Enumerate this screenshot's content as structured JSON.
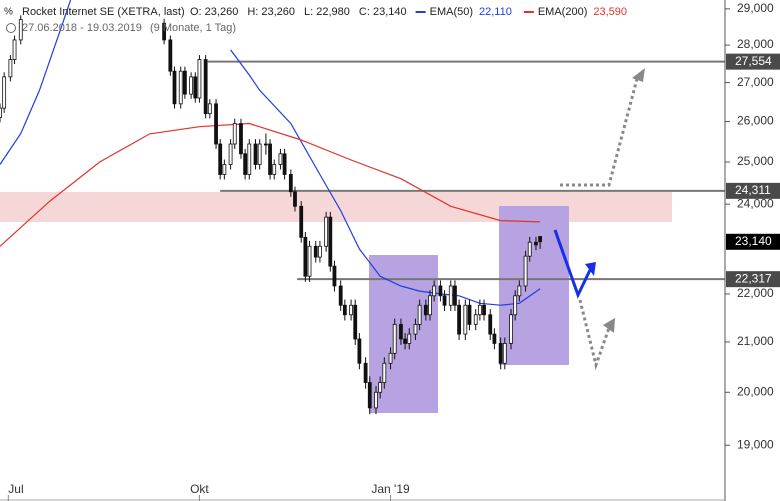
{
  "chart_data": {
    "type": "candlestick",
    "info": {
      "instrument": "Rocket Internet SE (XETRA, last)",
      "ohlc_labels": [
        "O: 23,260",
        "H: 23,260",
        "L: 22,980",
        "C: 23,140"
      ],
      "range": "27.06.2018 - 19.03.2019",
      "duration": "(9 Monate, 1 Tag)"
    },
    "log_scale": true,
    "ylim": [
      18000,
      29250
    ],
    "xlim": [
      0,
      349
    ],
    "yticks": [
      {
        "value": 29000,
        "label": "29,000"
      },
      {
        "value": 28000,
        "label": "28,000"
      },
      {
        "value": 27000,
        "label": "27,000"
      },
      {
        "value": 26000,
        "label": "26,000"
      },
      {
        "value": 25000,
        "label": "25,000"
      },
      {
        "value": 24000,
        "label": "24,000"
      },
      {
        "value": 22000,
        "label": "22,000"
      },
      {
        "value": 21000,
        "label": "21,000"
      },
      {
        "value": 20000,
        "label": "20,000"
      },
      {
        "value": 19000,
        "label": "19,000"
      }
    ],
    "xticks": [
      {
        "value": 4,
        "label": "Jul"
      },
      {
        "value": 96,
        "label": "Okt"
      },
      {
        "value": 188,
        "label": "Jan '19"
      }
    ],
    "x": [
      0,
      2,
      5,
      7,
      10,
      79,
      82,
      84,
      87,
      89,
      92,
      94,
      96,
      99,
      101,
      104,
      106,
      108,
      111,
      113,
      116,
      118,
      120,
      123,
      125,
      128,
      130,
      132,
      135,
      137,
      140,
      142,
      145,
      147,
      149,
      152,
      154,
      157,
      159,
      161,
      164,
      166,
      169,
      171,
      173,
      176,
      178,
      181,
      183,
      185,
      188,
      190,
      193,
      195,
      197,
      200,
      202,
      205,
      207,
      209,
      212,
      214,
      217,
      219,
      221,
      224,
      226,
      229,
      231,
      233,
      236,
      238,
      241,
      243,
      246,
      248,
      250,
      253,
      255,
      258,
      260
    ],
    "ohlc": [
      [
        26100,
        26460,
        25980,
        26340
      ],
      [
        26340,
        27270,
        26220,
        27150
      ],
      [
        27150,
        27730,
        27030,
        27610
      ],
      [
        27610,
        28260,
        27490,
        28140
      ],
      [
        28140,
        28820,
        28020,
        28700
      ],
      [
        28600,
        28720,
        28020,
        28140
      ],
      [
        28140,
        28260,
        27180,
        27300
      ],
      [
        27300,
        27420,
        26330,
        26450
      ],
      [
        26450,
        27420,
        26330,
        27300
      ],
      [
        27300,
        27420,
        26580,
        26700
      ],
      [
        26700,
        27270,
        26580,
        27150
      ],
      [
        27150,
        27270,
        26480,
        26600
      ],
      [
        26600,
        27730,
        26480,
        27610
      ],
      [
        27610,
        27730,
        26080,
        26200
      ],
      [
        26200,
        26570,
        26080,
        26450
      ],
      [
        26450,
        26570,
        25320,
        25440
      ],
      [
        25440,
        25560,
        24580,
        24700
      ],
      [
        24700,
        25060,
        24580,
        24940
      ],
      [
        24940,
        25560,
        24820,
        25440
      ],
      [
        25440,
        26070,
        25320,
        25950
      ],
      [
        25950,
        26070,
        25080,
        25200
      ],
      [
        25200,
        25320,
        24580,
        24700
      ],
      [
        24700,
        25560,
        24580,
        25440
      ],
      [
        25440,
        25560,
        24820,
        24940
      ],
      [
        24940,
        25560,
        24820,
        25440
      ],
      [
        25440,
        25700,
        25180,
        25440
      ],
      [
        25440,
        25560,
        24580,
        24700
      ],
      [
        24700,
        25060,
        24580,
        24940
      ],
      [
        24940,
        25320,
        24820,
        25200
      ],
      [
        25200,
        25320,
        24580,
        24700
      ],
      [
        24700,
        24820,
        24170,
        24290
      ],
      [
        24290,
        24410,
        23830,
        23950
      ],
      [
        23950,
        24070,
        23120,
        23240
      ],
      [
        23240,
        23360,
        22260,
        22380
      ],
      [
        22380,
        23160,
        22260,
        23040
      ],
      [
        23040,
        23160,
        22680,
        22800
      ],
      [
        22800,
        23160,
        22680,
        23040
      ],
      [
        23040,
        23820,
        22920,
        23700
      ],
      [
        23700,
        23820,
        22480,
        22600
      ],
      [
        22600,
        22720,
        22050,
        22170
      ],
      [
        22170,
        22290,
        21640,
        21760
      ],
      [
        21760,
        21880,
        21440,
        21560
      ],
      [
        21560,
        21880,
        21440,
        21760
      ],
      [
        21760,
        21880,
        20940,
        21060
      ],
      [
        21060,
        21180,
        20450,
        20570
      ],
      [
        20570,
        20690,
        20070,
        20190
      ],
      [
        20190,
        20310,
        19580,
        19700
      ],
      [
        19700,
        20120,
        19580,
        20000
      ],
      [
        20000,
        20310,
        19880,
        20190
      ],
      [
        20190,
        20690,
        20070,
        20570
      ],
      [
        20570,
        20890,
        20450,
        20770
      ],
      [
        20770,
        21480,
        20650,
        21360
      ],
      [
        21360,
        21480,
        20940,
        21060
      ],
      [
        21060,
        21180,
        20850,
        20970
      ],
      [
        20970,
        21280,
        20850,
        21160
      ],
      [
        21160,
        21480,
        21040,
        21360
      ],
      [
        21360,
        21880,
        21240,
        21760
      ],
      [
        21760,
        21880,
        21440,
        21560
      ],
      [
        21560,
        22080,
        21440,
        21960
      ],
      [
        21960,
        22290,
        21840,
        22170
      ],
      [
        22170,
        22290,
        21840,
        21960
      ],
      [
        21960,
        22080,
        21640,
        21760
      ],
      [
        21760,
        22290,
        21640,
        22170
      ],
      [
        22170,
        22290,
        21640,
        21760
      ],
      [
        21760,
        21880,
        21040,
        21160
      ],
      [
        21160,
        21880,
        21040,
        21760
      ],
      [
        21760,
        21880,
        21240,
        21360
      ],
      [
        21360,
        21680,
        21240,
        21560
      ],
      [
        21560,
        21880,
        21440,
        21760
      ],
      [
        21760,
        21880,
        21440,
        21560
      ],
      [
        21560,
        21680,
        21040,
        21160
      ],
      [
        21160,
        21280,
        20850,
        20970
      ],
      [
        20970,
        21090,
        20450,
        20570
      ],
      [
        20570,
        21090,
        20450,
        20970
      ],
      [
        20970,
        21680,
        20850,
        21560
      ],
      [
        21560,
        22080,
        21440,
        21960
      ],
      [
        21960,
        22290,
        21840,
        22170
      ],
      [
        22170,
        22940,
        22050,
        22820
      ],
      [
        22820,
        23250,
        22700,
        23130
      ],
      [
        23130,
        23250,
        22950,
        23070
      ],
      [
        23260,
        23260,
        22980,
        23140
      ]
    ],
    "series": [
      {
        "name": "EMA(50)",
        "color": "#1e3ee0",
        "last_label": "22,110",
        "x": [
          0,
          10,
          19,
          29,
          34,
          70,
          111,
          120,
          125,
          140,
          154,
          164,
          173,
          183,
          193,
          202,
          212,
          221,
          231,
          241,
          250,
          260
        ],
        "values": [
          24940,
          25700,
          26800,
          28400,
          29250,
          null,
          27870,
          27200,
          26800,
          25950,
          24700,
          23850,
          22980,
          22380,
          22170,
          22060,
          22000,
          21960,
          21800,
          21760,
          21800,
          22110
        ]
      },
      {
        "name": "EMA(200)",
        "color": "#e2332a",
        "last_label": "23,590",
        "x": [
          0,
          24,
          48,
          72,
          96,
          120,
          145,
          169,
          193,
          217,
          241,
          260
        ],
        "values": [
          23040,
          24070,
          25000,
          25690,
          25870,
          25950,
          25540,
          25050,
          24600,
          23950,
          23620,
          23590
        ]
      }
    ],
    "levels": [
      {
        "value": 27554,
        "label": "27,554",
        "from": 100
      },
      {
        "value": 24311,
        "label": "24,311",
        "from": 106
      },
      {
        "value": 22317,
        "label": "22,317",
        "from": 143
      }
    ],
    "last_price": {
      "value": 23140,
      "label": "23,140"
    }
  }
}
